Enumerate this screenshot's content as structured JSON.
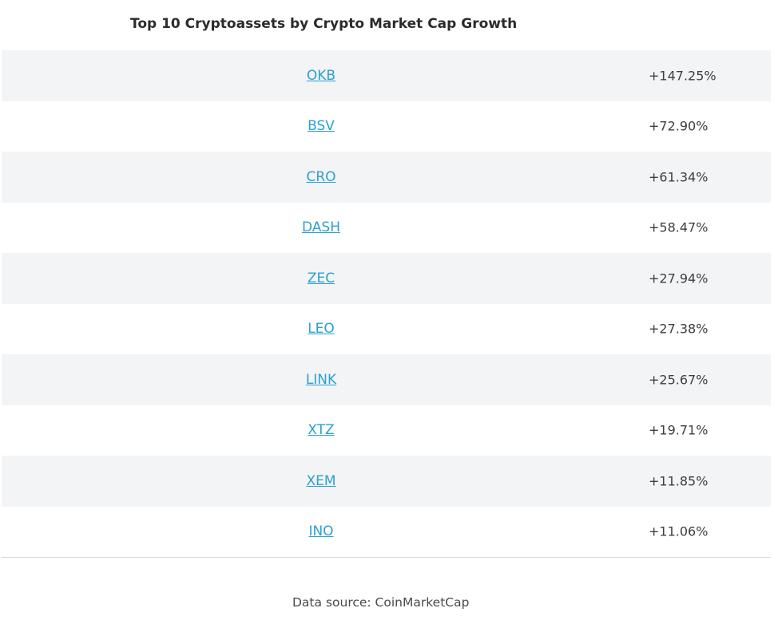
{
  "title": "Top 10 Cryptoassets by Crypto Market Cap Growth",
  "rows": [
    {
      "ticker": "OKB",
      "growth": "+147.25%"
    },
    {
      "ticker": "BSV",
      "growth": "+72.90%"
    },
    {
      "ticker": "CRO",
      "growth": "+61.34%"
    },
    {
      "ticker": "DASH",
      "growth": "+58.47%"
    },
    {
      "ticker": "ZEC",
      "growth": "+27.94%"
    },
    {
      "ticker": "LEO",
      "growth": "+27.38%"
    },
    {
      "ticker": "LINK",
      "growth": "+25.67%"
    },
    {
      "ticker": "XTZ",
      "growth": "+19.71%"
    },
    {
      "ticker": "XEM",
      "growth": "+11.85%"
    },
    {
      "ticker": "INO",
      "growth": "+11.06%"
    }
  ],
  "source": "Data source: CoinMarketCap",
  "colors": {
    "link": "#2aa0d2",
    "stripe": "#f3f4f6",
    "text": "#3e3e3e"
  }
}
